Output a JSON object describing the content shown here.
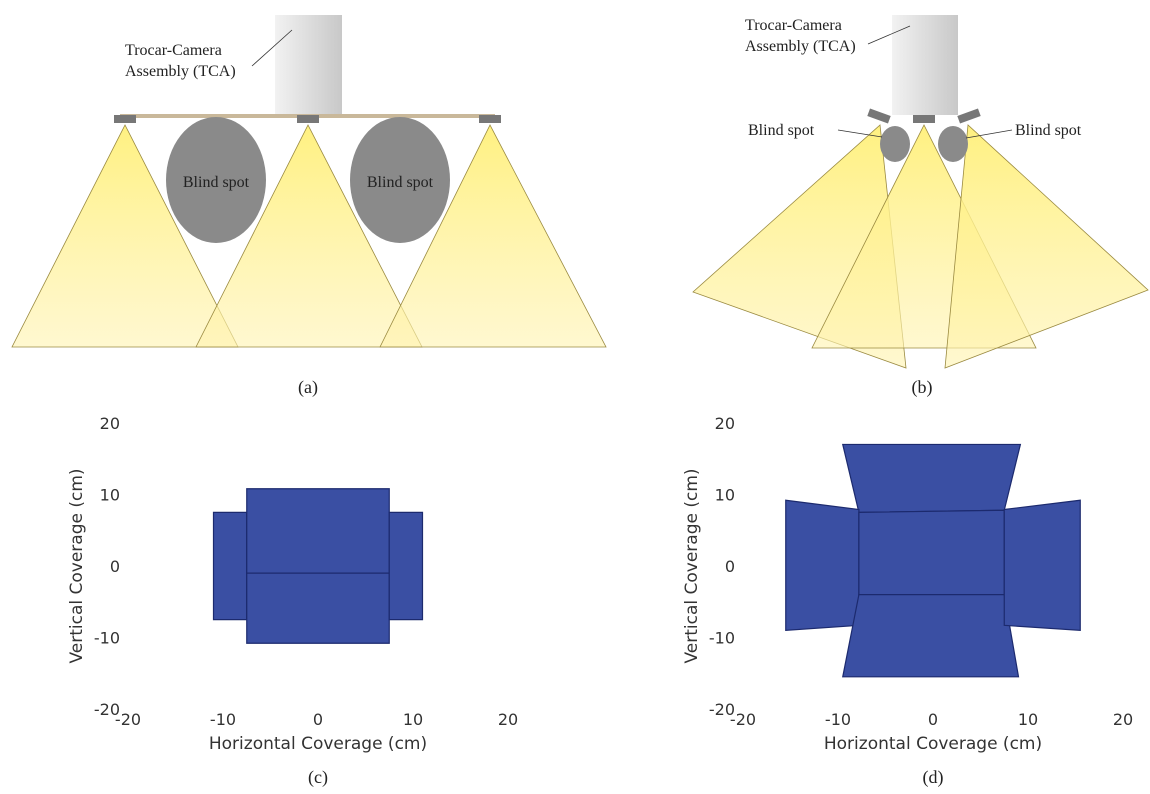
{
  "diagrams": [
    {
      "tca_label": [
        "Trocar-Camera",
        "Assembly (TCA)"
      ],
      "blind_spots": [
        "Blind spot",
        "Blind spot"
      ],
      "caption": "(a)"
    },
    {
      "tca_label": [
        "Trocar-Camera",
        "Assembly (TCA)"
      ],
      "blind_spots": [
        "Blind spot",
        "Blind spot"
      ],
      "caption": "(b)"
    }
  ],
  "chart_data": [
    {
      "type": "polygon",
      "caption": "(c)",
      "x_label": "Horizontal Coverage (cm)",
      "y_label": "Vertical Coverage (cm)",
      "xlim": [
        -20,
        20
      ],
      "ylim": [
        -20,
        20
      ],
      "xticks": [
        -20,
        -10,
        0,
        10,
        20
      ],
      "yticks": [
        -20,
        -10,
        0,
        10,
        20
      ],
      "color": "#3a4fa3",
      "edge_color": "#1c2a6e",
      "series": [
        {
          "x": [
            -11,
            -7.5,
            -7.5,
            -11
          ],
          "y": [
            7.5,
            7.5,
            -7.5,
            -7.5
          ]
        },
        {
          "x": [
            -7.5,
            7.5,
            7.5,
            -7.5
          ],
          "y": [
            10.8,
            10.8,
            -1,
            -1
          ]
        },
        {
          "x": [
            -7.5,
            7.5,
            7.5,
            -7.5
          ],
          "y": [
            -1,
            -1,
            -10.8,
            -10.8
          ]
        },
        {
          "x": [
            7.5,
            11,
            11,
            7.5
          ],
          "y": [
            7.5,
            7.5,
            -7.5,
            -7.5
          ]
        }
      ]
    },
    {
      "type": "polygon",
      "caption": "(d)",
      "x_label": "Horizontal Coverage (cm)",
      "y_label": "Vertical Coverage (cm)",
      "xlim": [
        -20,
        20
      ],
      "ylim": [
        -20,
        20
      ],
      "xticks": [
        -20,
        -10,
        0,
        10,
        20
      ],
      "yticks": [
        -20,
        -10,
        0,
        10,
        20
      ],
      "color": "#3a4fa3",
      "edge_color": "#1c2a6e",
      "series": [
        {
          "x": [
            -9.5,
            9.2,
            7.5,
            -7.8
          ],
          "y": [
            17,
            17,
            7.8,
            7.5
          ]
        },
        {
          "x": [
            -15.5,
            -7.8,
            -7.8,
            -15.5
          ],
          "y": [
            9.2,
            7.9,
            -8.3,
            -9
          ]
        },
        {
          "x": [
            -7.8,
            7.5,
            7.5,
            -7.8
          ],
          "y": [
            7.5,
            7.8,
            -4,
            -4
          ]
        },
        {
          "x": [
            -7.8,
            7.5,
            9,
            -9.5
          ],
          "y": [
            -4,
            -4,
            -15.5,
            -15.5
          ]
        },
        {
          "x": [
            7.5,
            15.5,
            15.5,
            7.5
          ],
          "y": [
            7.9,
            9.2,
            -9,
            -8.3
          ]
        }
      ]
    }
  ]
}
